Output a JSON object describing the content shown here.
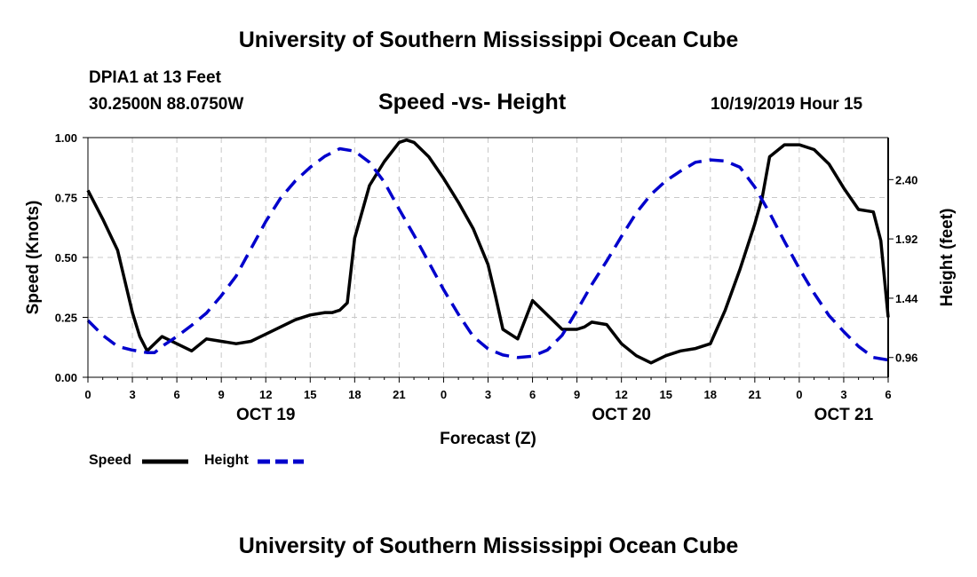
{
  "page": {
    "top_title": "University of Southern Mississippi Ocean Cube",
    "bottom_title": "University of Southern Mississippi Ocean Cube",
    "station": "DPIA1 at 13 Feet",
    "coords": "30.2500N 88.0750W",
    "subtitle": "Speed -vs- Height",
    "datetime": "10/19/2019 Hour 15"
  },
  "chart_data": {
    "type": "line",
    "title": "Speed -vs- Height",
    "xlabel": "Forecast (Z)",
    "ylabel_left": "Speed (Knots)",
    "ylabel_right": "Height (feet)",
    "x_range": [
      0,
      54
    ],
    "x_ticks": [
      0,
      3,
      6,
      9,
      12,
      15,
      18,
      21,
      24,
      27,
      30,
      33,
      36,
      39,
      42,
      45,
      48,
      51,
      54
    ],
    "x_tick_labels": [
      "0",
      "3",
      "6",
      "9",
      "12",
      "15",
      "18",
      "21",
      "0",
      "3",
      "6",
      "9",
      "12",
      "15",
      "18",
      "21",
      "0",
      "3",
      "6"
    ],
    "date_labels": [
      {
        "hour": 12,
        "label": "OCT 19"
      },
      {
        "hour": 36,
        "label": "OCT 20"
      },
      {
        "hour": 51,
        "label": "OCT 21"
      }
    ],
    "ylim_left": [
      0,
      1.0
    ],
    "y_ticks_left": [
      0.0,
      0.25,
      0.5,
      0.75,
      1.0
    ],
    "y_tick_labels_left": [
      "0.00",
      "0.25",
      "0.50",
      "0.75",
      "1.00"
    ],
    "ylim_right": [
      0.8,
      2.74
    ],
    "y_ticks_right": [
      0.96,
      1.44,
      1.92,
      2.4
    ],
    "y_tick_labels_right": [
      "0.96",
      "1.44",
      "1.92",
      "2.40"
    ],
    "grid": true,
    "series": [
      {
        "name": "Speed",
        "axis": "left",
        "color": "#000000",
        "style": "solid",
        "x": [
          0,
          1,
          2,
          3,
          3.5,
          4,
          5,
          6,
          7,
          8,
          9,
          10,
          11,
          12,
          13,
          14,
          15,
          16,
          16.5,
          17,
          17.5,
          18,
          19,
          20,
          21,
          21.5,
          22,
          23,
          24,
          25,
          26,
          27,
          27.5,
          28,
          29,
          30,
          31,
          32,
          33,
          33.5,
          34,
          35,
          36,
          37,
          38,
          39,
          40,
          41,
          42,
          43,
          44,
          45,
          45.5,
          46,
          47,
          48,
          49,
          50,
          51,
          52,
          53,
          53.5,
          54
        ],
        "y": [
          0.78,
          0.66,
          0.53,
          0.27,
          0.17,
          0.11,
          0.17,
          0.14,
          0.11,
          0.16,
          0.15,
          0.14,
          0.15,
          0.18,
          0.21,
          0.24,
          0.26,
          0.27,
          0.27,
          0.28,
          0.31,
          0.58,
          0.8,
          0.9,
          0.98,
          0.99,
          0.98,
          0.92,
          0.83,
          0.73,
          0.62,
          0.47,
          0.34,
          0.2,
          0.16,
          0.32,
          0.26,
          0.2,
          0.2,
          0.21,
          0.23,
          0.22,
          0.14,
          0.09,
          0.06,
          0.09,
          0.11,
          0.12,
          0.14,
          0.28,
          0.45,
          0.64,
          0.75,
          0.92,
          0.97,
          0.97,
          0.95,
          0.89,
          0.79,
          0.7,
          0.69,
          0.57,
          0.25
        ]
      },
      {
        "name": "Height",
        "axis": "right",
        "color": "#0000cc",
        "style": "dashed",
        "x": [
          0,
          1,
          2,
          3,
          4,
          4.5,
          5,
          6,
          7,
          8,
          9,
          10,
          11,
          12,
          13,
          14,
          15,
          16,
          17,
          18,
          19,
          20,
          21,
          22,
          23,
          24,
          25,
          26,
          27,
          28,
          29,
          30,
          31,
          32,
          33,
          34,
          35,
          36,
          37,
          38,
          39,
          40,
          41,
          42,
          43,
          44,
          45,
          46,
          47,
          48,
          49,
          50,
          51,
          52,
          53,
          54
        ],
        "y": [
          1.26,
          1.14,
          1.05,
          1.02,
          1.0,
          1.0,
          1.05,
          1.13,
          1.22,
          1.32,
          1.46,
          1.62,
          1.84,
          2.06,
          2.25,
          2.39,
          2.5,
          2.59,
          2.65,
          2.63,
          2.54,
          2.38,
          2.16,
          1.95,
          1.73,
          1.51,
          1.31,
          1.13,
          1.03,
          0.98,
          0.96,
          0.97,
          1.02,
          1.14,
          1.34,
          1.55,
          1.74,
          1.94,
          2.13,
          2.28,
          2.39,
          2.47,
          2.54,
          2.56,
          2.55,
          2.5,
          2.34,
          2.13,
          1.9,
          1.68,
          1.48,
          1.3,
          1.17,
          1.05,
          0.96,
          0.94
        ]
      }
    ],
    "legend": [
      {
        "label": "Speed",
        "color": "#000000",
        "style": "solid"
      },
      {
        "label": "Height",
        "color": "#0000cc",
        "style": "dashed"
      }
    ]
  }
}
